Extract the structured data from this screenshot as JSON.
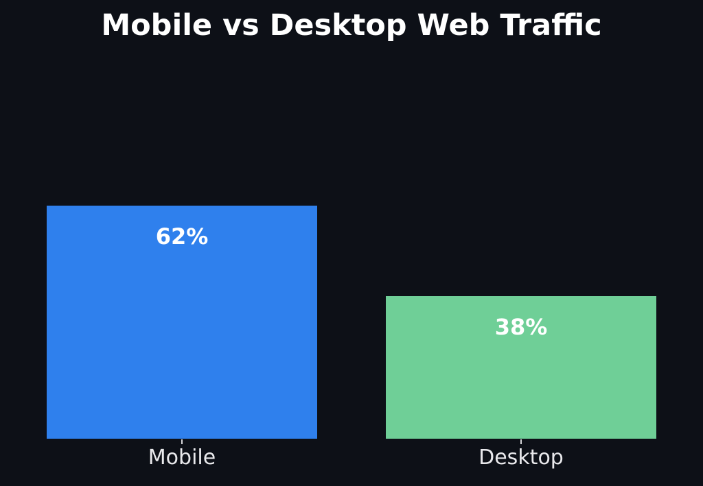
{
  "chart_data": {
    "type": "bar",
    "title": "Mobile vs Desktop Web Traffic",
    "categories": [
      "Mobile",
      "Desktop"
    ],
    "values": [
      62,
      38
    ],
    "value_labels": [
      "62%",
      "38%"
    ],
    "bar_colors": [
      "#2f80ed",
      "#6fcf97"
    ],
    "xlabel": "",
    "ylabel": "",
    "ylim": [
      0,
      100
    ],
    "grid": false,
    "legend": false,
    "background_color": "#0d1017",
    "title_color": "#ffffff",
    "value_label_color": "#ffffff",
    "axis_label_color": "#e9e9ec",
    "tick_color": "#d9d9dc"
  }
}
